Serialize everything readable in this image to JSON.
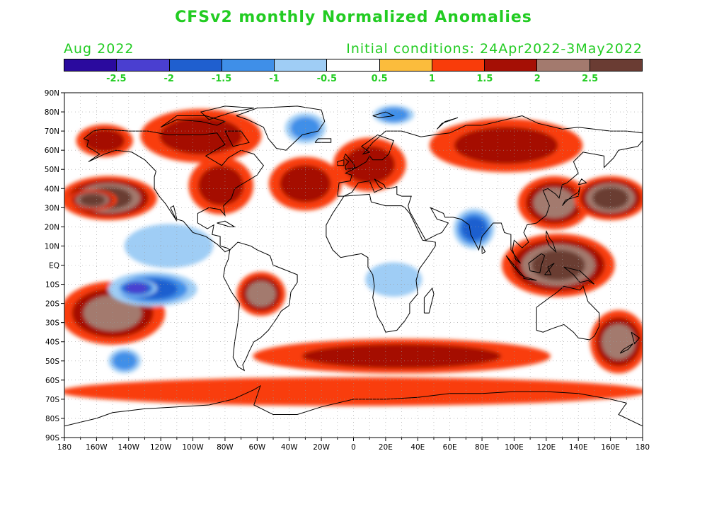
{
  "title": "CFSv2 monthly Normalized Anomalies",
  "valid_month": "Aug 2022",
  "initial_conditions": "Initial conditions: 24Apr2022-3May2022",
  "colorbar": {
    "colors": [
      "#2a0a9e",
      "#4a3fd0",
      "#1f5fcf",
      "#3f8fe8",
      "#9fcdf5",
      "#ffffff",
      "#fbbc3c",
      "#f93c0a",
      "#a50f05",
      "#a37a6e",
      "#6a3c33"
    ],
    "labels": [
      "-2.5",
      "-2",
      "-1.5",
      "-1",
      "-0.5",
      "0.5",
      "1",
      "1.5",
      "2",
      "2.5"
    ]
  },
  "map": {
    "lon_labels": [
      "180",
      "160W",
      "140W",
      "120W",
      "100W",
      "80W",
      "60W",
      "40W",
      "20W",
      "0",
      "20E",
      "40E",
      "60E",
      "80E",
      "100E",
      "120E",
      "140E",
      "160E",
      "180"
    ],
    "lat_labels": [
      "90N",
      "80N",
      "70N",
      "60N",
      "50N",
      "40N",
      "30N",
      "20N",
      "10N",
      "EQ",
      "10S",
      "20S",
      "30S",
      "40S",
      "50S",
      "60S",
      "70S",
      "80S",
      "90S"
    ],
    "lon_range": [
      -180,
      180
    ],
    "lat_range": [
      -90,
      90
    ],
    "grid": "dotted",
    "anomaly_regions": [
      {
        "name": "north-pacific-high",
        "lon": [
          -180,
          -125
        ],
        "lat": [
          25,
          45
        ],
        "level": 2.3
      },
      {
        "name": "north-pacific-core",
        "lon": [
          -175,
          -150
        ],
        "lat": [
          30,
          38
        ],
        "level": 2.6
      },
      {
        "name": "alaska",
        "lon": [
          -170,
          -140
        ],
        "lat": [
          58,
          72
        ],
        "level": 1.6
      },
      {
        "name": "canada-arctic",
        "lon": [
          -130,
          -60
        ],
        "lat": [
          55,
          80
        ],
        "level": 1.7
      },
      {
        "name": "eastern-us",
        "lon": [
          -100,
          -65
        ],
        "lat": [
          28,
          55
        ],
        "level": 1.7
      },
      {
        "name": "north-atlantic",
        "lon": [
          -50,
          -10
        ],
        "lat": [
          30,
          55
        ],
        "level": 1.3
      },
      {
        "name": "europe",
        "lon": [
          -10,
          30
        ],
        "lat": [
          40,
          65
        ],
        "level": 1.5
      },
      {
        "name": "siberia",
        "lon": [
          50,
          140
        ],
        "lat": [
          50,
          75
        ],
        "level": 1.7
      },
      {
        "name": "east-asia",
        "lon": [
          105,
          145
        ],
        "lat": [
          20,
          45
        ],
        "level": 2.2
      },
      {
        "name": "nw-pacific",
        "lon": [
          140,
          180
        ],
        "lat": [
          25,
          45
        ],
        "level": 2.3
      },
      {
        "name": "maritime-continent",
        "lon": [
          95,
          160
        ],
        "lat": [
          -15,
          15
        ],
        "level": 2.4
      },
      {
        "name": "south-pacific-band",
        "lon": [
          -180,
          -120
        ],
        "lat": [
          -40,
          -10
        ],
        "level": 1.8
      },
      {
        "name": "central-south-america",
        "lon": [
          -70,
          -45
        ],
        "lat": [
          -25,
          -5
        ],
        "level": 2.2
      },
      {
        "name": "southern-ocean-belt",
        "lon": [
          -60,
          120
        ],
        "lat": [
          -55,
          -40
        ],
        "level": 1.4
      },
      {
        "name": "sw-pacific",
        "lon": [
          150,
          180
        ],
        "lat": [
          -55,
          -25
        ],
        "level": 1.9
      },
      {
        "name": "antarctic-ring",
        "lon": [
          -180,
          180
        ],
        "lat": [
          -72,
          -60
        ],
        "level": 1.2
      },
      {
        "name": "east-pacific-cold",
        "lon": [
          -150,
          -100
        ],
        "lat": [
          -20,
          -5
        ],
        "level": -1.8
      },
      {
        "name": "east-pacific-cold-core",
        "lon": [
          -145,
          -125
        ],
        "lat": [
          -15,
          -9
        ],
        "level": -2.6
      },
      {
        "name": "tropical-pacific-cold",
        "lon": [
          -140,
          -90
        ],
        "lat": [
          0,
          20
        ],
        "level": -0.8
      },
      {
        "name": "south-pacific-cold",
        "lon": [
          -150,
          -135
        ],
        "lat": [
          -55,
          -45
        ],
        "level": -1.4
      },
      {
        "name": "india-cold",
        "lon": [
          65,
          85
        ],
        "lat": [
          10,
          28
        ],
        "level": -1.8
      },
      {
        "name": "greenland-sea-cold",
        "lon": [
          -40,
          -20
        ],
        "lat": [
          65,
          78
        ],
        "level": -1.3
      },
      {
        "name": "barents-cold",
        "lon": [
          15,
          35
        ],
        "lat": [
          75,
          82
        ],
        "level": -1.6
      },
      {
        "name": "africa-cold",
        "lon": [
          10,
          40
        ],
        "lat": [
          -15,
          0
        ],
        "level": -0.8
      }
    ]
  }
}
